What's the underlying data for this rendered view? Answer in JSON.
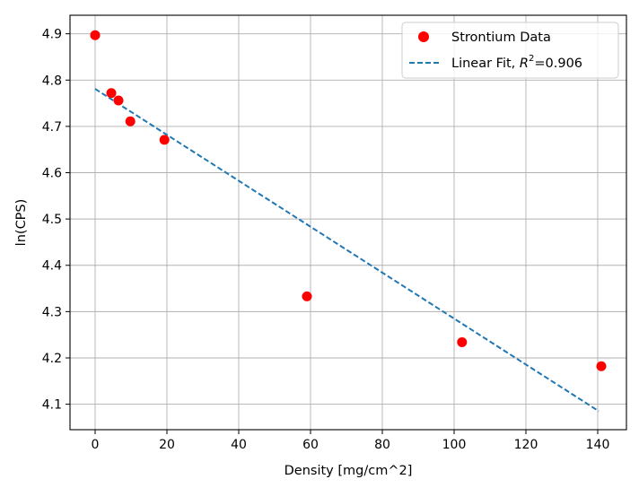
{
  "chart_data": {
    "type": "scatter",
    "xlabel": "Density [mg/cm^2]",
    "ylabel": "ln(CPS)",
    "xlim": [
      -7,
      148
    ],
    "ylim": [
      4.045,
      4.94
    ],
    "xticks": [
      0,
      20,
      40,
      60,
      80,
      100,
      120,
      140
    ],
    "yticks": [
      4.1,
      4.2,
      4.3,
      4.4,
      4.5,
      4.6,
      4.7,
      4.8,
      4.9
    ],
    "grid": true,
    "legend_position": "top-right",
    "series": [
      {
        "name": "Strontium Data",
        "kind": "scatter",
        "color": "#ff0000",
        "points": [
          {
            "x": 0.0,
            "y": 4.897
          },
          {
            "x": 4.5,
            "y": 4.772
          },
          {
            "x": 6.5,
            "y": 4.756
          },
          {
            "x": 9.8,
            "y": 4.711
          },
          {
            "x": 19.3,
            "y": 4.671
          },
          {
            "x": 59.0,
            "y": 4.333
          },
          {
            "x": 102.2,
            "y": 4.234
          },
          {
            "x": 141.0,
            "y": 4.182
          }
        ]
      },
      {
        "name": "Linear Fit, R²=0.906",
        "kind": "line",
        "style": "dashed",
        "color": "#1f77b4",
        "points": [
          {
            "x": 0.0,
            "y": 4.781
          },
          {
            "x": 140.3,
            "y": 4.085
          }
        ]
      }
    ],
    "legend": {
      "entries": [
        {
          "label": "Strontium Data"
        },
        {
          "label": "Linear Fit, ",
          "r_label": "R",
          "r_sup": "2",
          "r_value": "=0.906"
        }
      ]
    }
  }
}
